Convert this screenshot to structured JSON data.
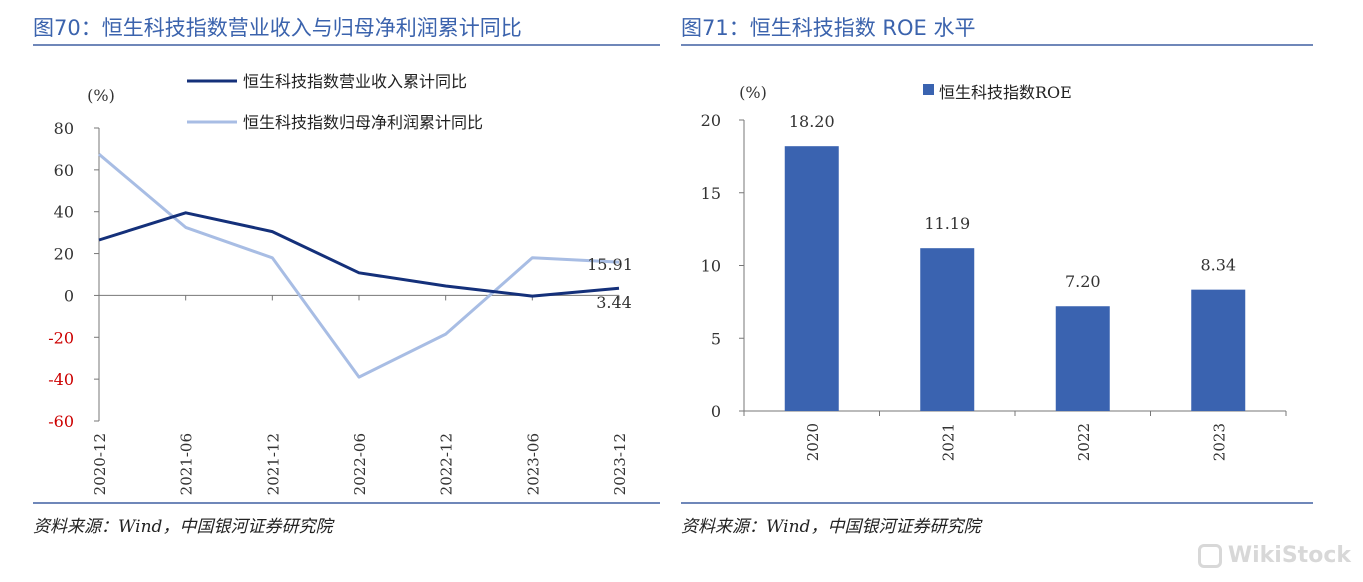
{
  "left_figure": {
    "title": "图70：恒生科技指数营业收入与归母净利润累计同比",
    "source": "资料来源：Wind，中国银河证券研究院"
  },
  "right_figure": {
    "title": "图71：恒生科技指数 ROE 水平",
    "source": "资料来源：Wind，中国银河证券研究院"
  },
  "watermark": "WikiStock",
  "colors": {
    "title": "#3b63ad",
    "series_revenue": "#14307a",
    "series_profit": "#a8bde4",
    "bar": "#3a63b0",
    "negative_tick": "#cc0000"
  },
  "chart_data": [
    {
      "type": "line",
      "unit_label": "(%)",
      "categories": [
        "2020-12",
        "2021-06",
        "2021-12",
        "2022-06",
        "2022-12",
        "2023-06",
        "2023-12"
      ],
      "series": [
        {
          "name": "恒生科技指数营业收入累计同比",
          "values": [
            26.5,
            39.5,
            30.5,
            10.8,
            4.5,
            -0.3,
            3.44
          ]
        },
        {
          "name": "恒生科技指数归母净利润累计同比",
          "values": [
            67.5,
            32.5,
            18.0,
            -39.0,
            -18.5,
            18.0,
            15.91
          ]
        }
      ],
      "annotations": [
        "15.91",
        "3.44"
      ],
      "ylim": [
        -60,
        80
      ],
      "yticks": [
        "80",
        "60",
        "40",
        "20",
        "0",
        "-20",
        "-40",
        "-60"
      ],
      "legend_position": "top",
      "grid": false
    },
    {
      "type": "bar",
      "unit_label": "(%)",
      "categories": [
        "2020",
        "2021",
        "2022",
        "2023"
      ],
      "series": [
        {
          "name": "恒生科技指数ROE",
          "values": [
            18.2,
            11.19,
            7.2,
            8.34
          ]
        }
      ],
      "data_labels": [
        "18.20",
        "11.19",
        "7.20",
        "8.34"
      ],
      "ylim": [
        0,
        20
      ],
      "yticks": [
        "20",
        "15",
        "10",
        "5",
        "0"
      ],
      "legend_position": "top",
      "grid": false
    }
  ]
}
